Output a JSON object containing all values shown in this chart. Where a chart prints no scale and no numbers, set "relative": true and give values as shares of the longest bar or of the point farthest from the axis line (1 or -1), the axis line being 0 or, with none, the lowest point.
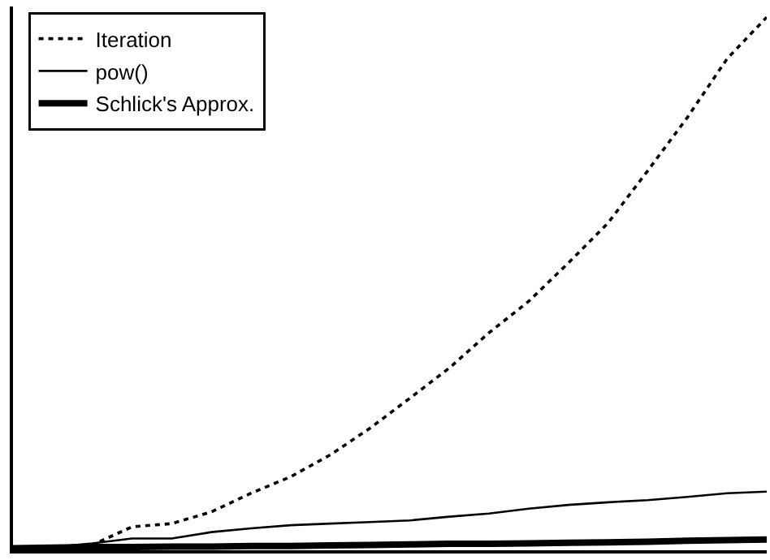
{
  "chart_data": {
    "type": "line",
    "relative": true,
    "categories": [
      null,
      null,
      null,
      null,
      null,
      null,
      null,
      null,
      null,
      null,
      null,
      null,
      null,
      null,
      null,
      null,
      null,
      null,
      null,
      null
    ],
    "series": [
      {
        "name": "Iteration",
        "color": "#000000",
        "line_style": "dotted",
        "values": [
          0.003,
          0.003,
          0.01,
          0.044,
          0.05,
          0.072,
          0.107,
          0.138,
          0.179,
          0.229,
          0.285,
          0.342,
          0.408,
          0.467,
          0.539,
          0.614,
          0.712,
          0.812,
          0.922,
          1.0
        ]
      },
      {
        "name": "pow()",
        "color": "#000000",
        "line_style": "solid",
        "values": [
          0.003,
          0.006,
          0.013,
          0.022,
          0.022,
          0.034,
          0.041,
          0.047,
          0.05,
          0.053,
          0.056,
          0.063,
          0.069,
          0.078,
          0.085,
          0.09,
          0.094,
          0.1,
          0.107,
          0.11
        ]
      },
      {
        "name": "Schlick's Approx.",
        "color": "#000000",
        "line_style": "solid",
        "values": [
          0.004,
          0.005,
          0.006,
          0.006,
          0.007,
          0.007,
          0.008,
          0.008,
          0.009,
          0.01,
          0.011,
          0.012,
          0.012,
          0.013,
          0.014,
          0.015,
          0.016,
          0.018,
          0.019,
          0.02
        ]
      }
    ],
    "legend": "top left",
    "marker": "none"
  }
}
